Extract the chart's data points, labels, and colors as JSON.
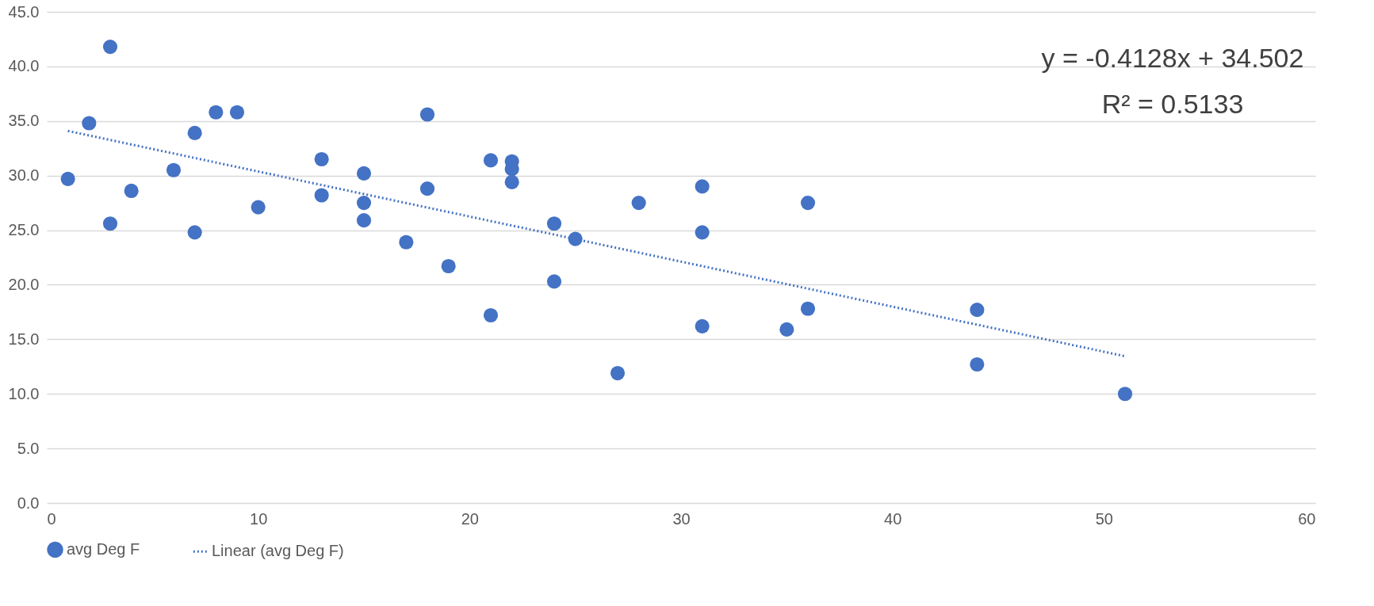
{
  "chart_data": {
    "type": "scatter",
    "series": [
      {
        "name": "avg Deg F",
        "color": "#4472c4",
        "marker": "circle",
        "x": [
          1,
          2,
          3,
          3,
          4,
          6,
          7,
          7,
          8,
          9,
          10,
          13,
          13,
          15,
          15,
          15,
          17,
          18,
          18,
          19,
          21,
          21,
          22,
          22,
          22,
          24,
          24,
          25,
          27,
          28,
          31,
          31,
          31,
          35,
          36,
          36,
          44,
          44,
          51
        ],
        "values": [
          29.7,
          34.8,
          41.8,
          25.6,
          28.6,
          30.5,
          33.9,
          24.8,
          35.8,
          35.8,
          27.1,
          31.5,
          28.2,
          30.2,
          27.5,
          25.9,
          23.9,
          35.6,
          28.8,
          21.7,
          31.4,
          17.2,
          31.3,
          30.6,
          29.4,
          25.6,
          20.3,
          24.2,
          11.9,
          27.5,
          29.0,
          24.8,
          16.2,
          15.9,
          27.5,
          17.8,
          17.7,
          12.7,
          10.0
        ]
      },
      {
        "name": "Linear (avg Deg F)",
        "type": "line",
        "color": "#4472c4",
        "line_style": "dotted",
        "x": [
          1,
          51
        ],
        "values": [
          34.09,
          13.45
        ]
      }
    ],
    "annotations": [
      "y = -0.4128x + 34.502",
      "R² = 0.5133"
    ],
    "xlim": [
      0,
      60
    ],
    "xticks": [
      0,
      10,
      20,
      30,
      40,
      50,
      60
    ],
    "ylim": [
      0,
      45
    ],
    "yticks": [
      {
        "value": 0,
        "label": "0.0"
      },
      {
        "value": 5,
        "label": "5.0"
      },
      {
        "value": 10,
        "label": "10.0"
      },
      {
        "value": 15,
        "label": "15.0"
      },
      {
        "value": 20,
        "label": "20.0"
      },
      {
        "value": 25,
        "label": "25.0"
      },
      {
        "value": 30,
        "label": "30.0"
      },
      {
        "value": 35,
        "label": "35.0"
      },
      {
        "value": 40,
        "label": "40.0"
      },
      {
        "value": 45,
        "label": "45.0"
      }
    ],
    "grid": "y",
    "legend": "bottom"
  }
}
